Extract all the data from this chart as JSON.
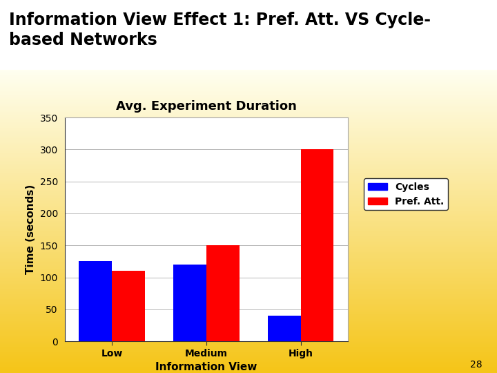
{
  "title_line1": "Information View Effect 1: Pref. Att. VS Cycle-",
  "title_line2": "based Networks",
  "chart_title": "Avg. Experiment Duration",
  "categories": [
    "Low",
    "Medium",
    "High"
  ],
  "cycles_values": [
    125,
    120,
    40
  ],
  "pref_att_values": [
    110,
    150,
    300
  ],
  "ylabel": "Time (seconds)",
  "xlabel": "Information View",
  "ylim": [
    0,
    350
  ],
  "yticks": [
    0,
    50,
    100,
    150,
    200,
    250,
    300,
    350
  ],
  "bar_color_cycles": "#0000FF",
  "bar_color_pref": "#FF0000",
  "legend_labels": [
    "Cycles",
    "Pref. Att."
  ],
  "title_bg": "#FFFFFF",
  "chart_bg": "#FFFFFF",
  "title_color": "#000000",
  "slide_number": "28",
  "bar_width": 0.35,
  "divider_color": "#4472C4",
  "gradient_bottom": "#F5C518",
  "gradient_top": "#FFFFF0",
  "title_fontsize": 17,
  "chart_title_fontsize": 13,
  "axis_label_fontsize": 11,
  "tick_fontsize": 10
}
